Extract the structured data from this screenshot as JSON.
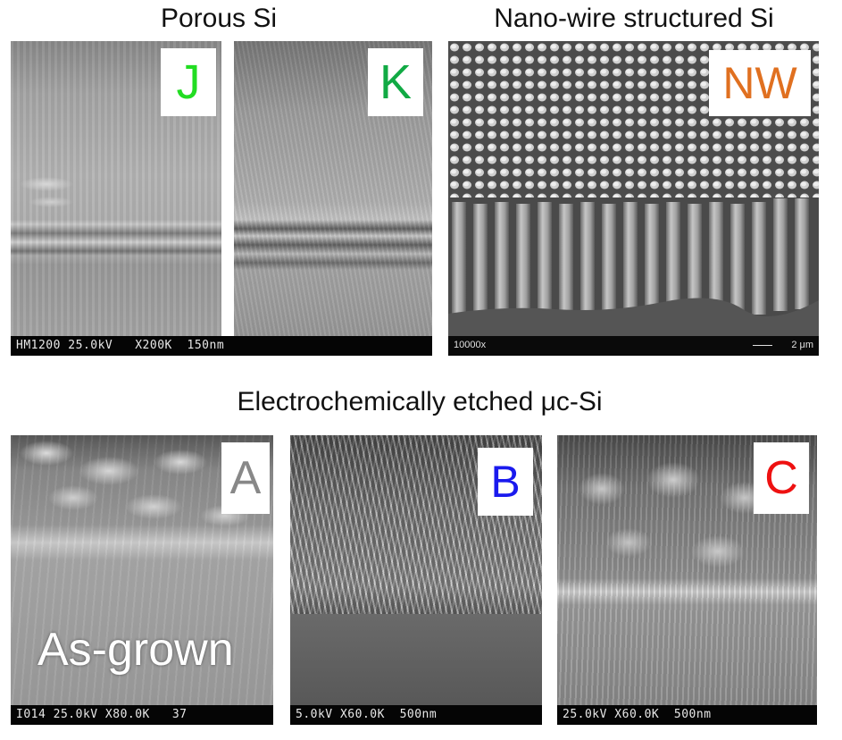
{
  "headings": {
    "porous": "Porous Si",
    "nanowire": "Nano-wire structured Si",
    "electrochemical": "Electrochemically etched μc-Si"
  },
  "panels": {
    "J": {
      "label": "J",
      "label_color": "#22dd22"
    },
    "K": {
      "label": "K",
      "label_color": "#11aa44"
    },
    "NW": {
      "label": "NW",
      "label_color": "#e07020",
      "magnification": "10000x",
      "scalebar": "2 μm"
    },
    "A": {
      "label": "A",
      "label_color": "#888888",
      "overlay": "As-grown"
    },
    "B": {
      "label": "B",
      "label_color": "#1a1aee"
    },
    "C": {
      "label": "C",
      "label_color": "#ee1111"
    }
  },
  "sem_bars": {
    "JK": "HM1200 25.0kV   X200K  150nm",
    "A": "I014 25.0kV X80.0K   37",
    "B": "5.0kV X60.0K  500nm",
    "C": "25.0kV X60.0K  500nm"
  }
}
